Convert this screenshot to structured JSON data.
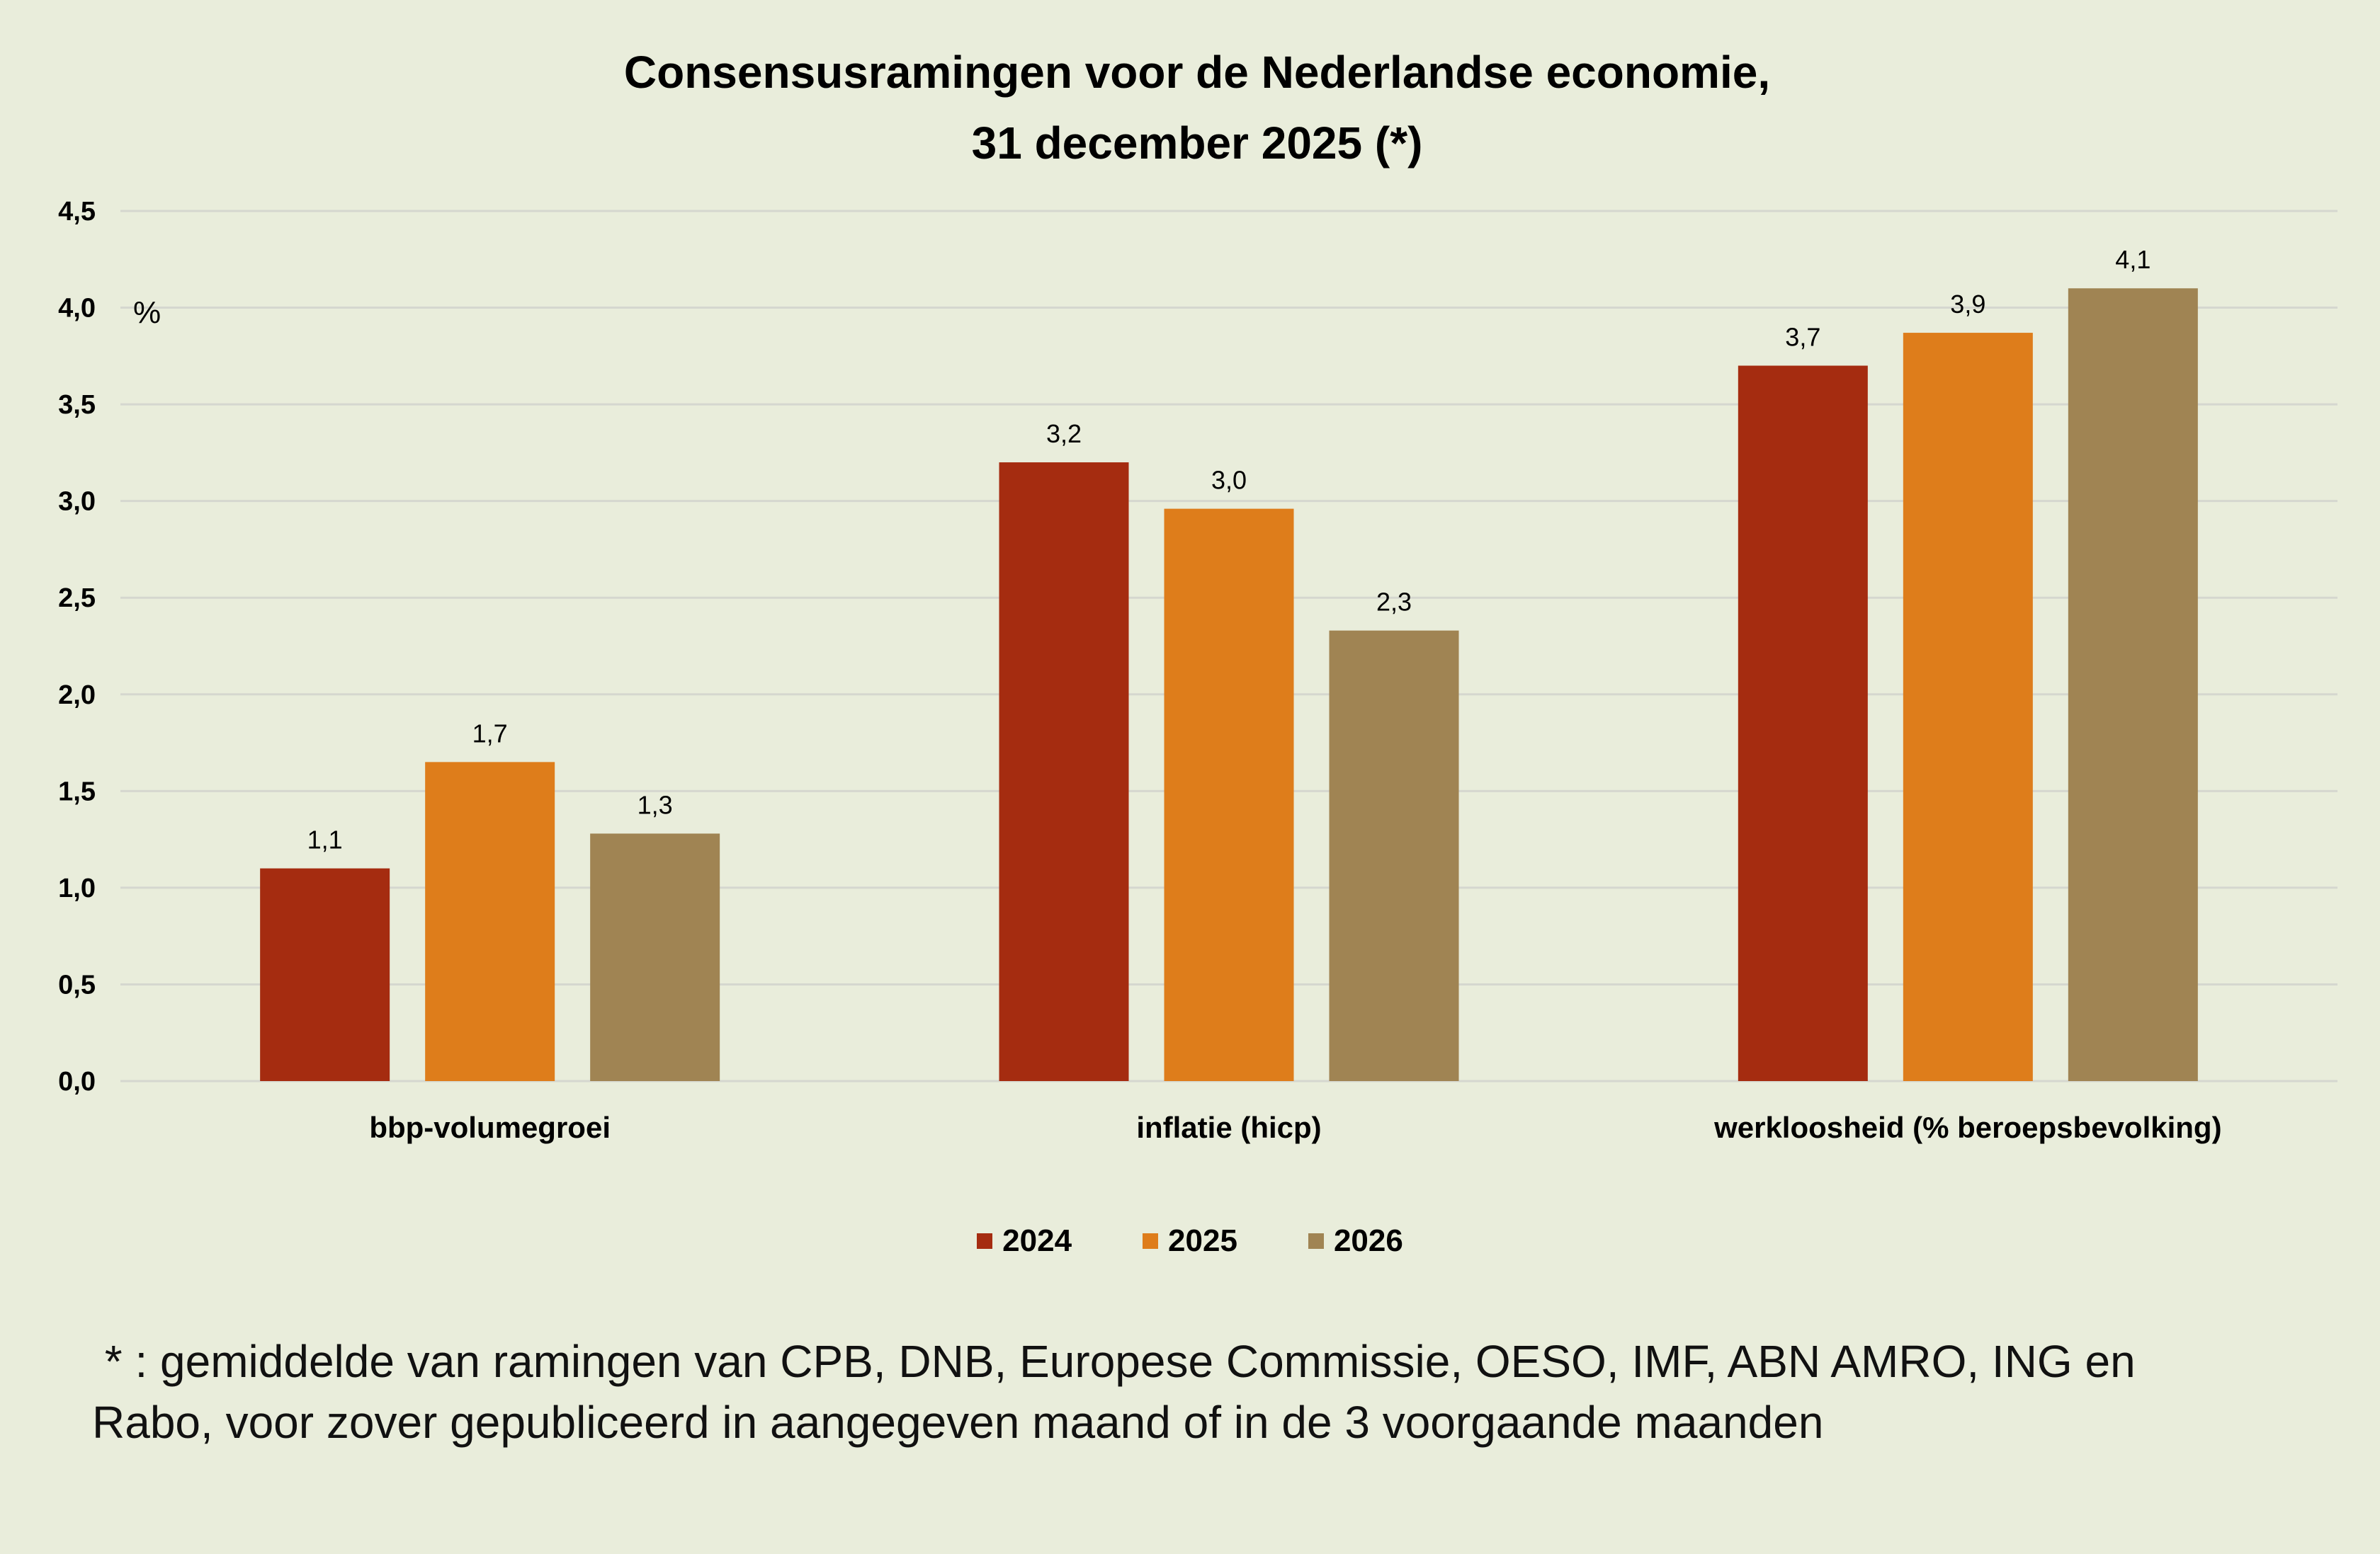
{
  "chart_data": {
    "type": "bar",
    "title": [
      "Consensusramingen voor de Nederlandse economie,",
      "31 december 2025 (*)"
    ],
    "ylabel": "%",
    "ylim": [
      0,
      4.5
    ],
    "yticks": [
      "0,0",
      "0,5",
      "1,0",
      "1,5",
      "2,0",
      "2,5",
      "3,0",
      "3,5",
      "4,0",
      "4,5"
    ],
    "grid": true,
    "categories": [
      "bbp-volumegroei",
      "inflatie (hicp)",
      "werkloosheid (% beroepsbevolking)"
    ],
    "series": [
      {
        "name": "2024",
        "color": "#a52c10",
        "values": [
          1.1,
          3.2,
          3.7
        ],
        "labels": [
          "1,1",
          "3,2",
          "3,7"
        ]
      },
      {
        "name": "2025",
        "color": "#de7d1b",
        "values": [
          1.65,
          2.96,
          3.87
        ],
        "labels": [
          "1,7",
          "3,0",
          "3,9"
        ]
      },
      {
        "name": "2026",
        "color": "#a08453",
        "values": [
          1.28,
          2.33,
          4.1
        ],
        "labels": [
          "1,3",
          "2,3",
          "4,1"
        ]
      }
    ],
    "legend_position": "bottom"
  },
  "footnote": [
    " * : gemiddelde van ramingen van CPB, DNB, Europese Commissie, OESO, IMF, ABN AMRO, ING en",
    "Rabo, voor zover gepubliceerd in aangegeven maand of in de 3 voorgaande maanden"
  ]
}
